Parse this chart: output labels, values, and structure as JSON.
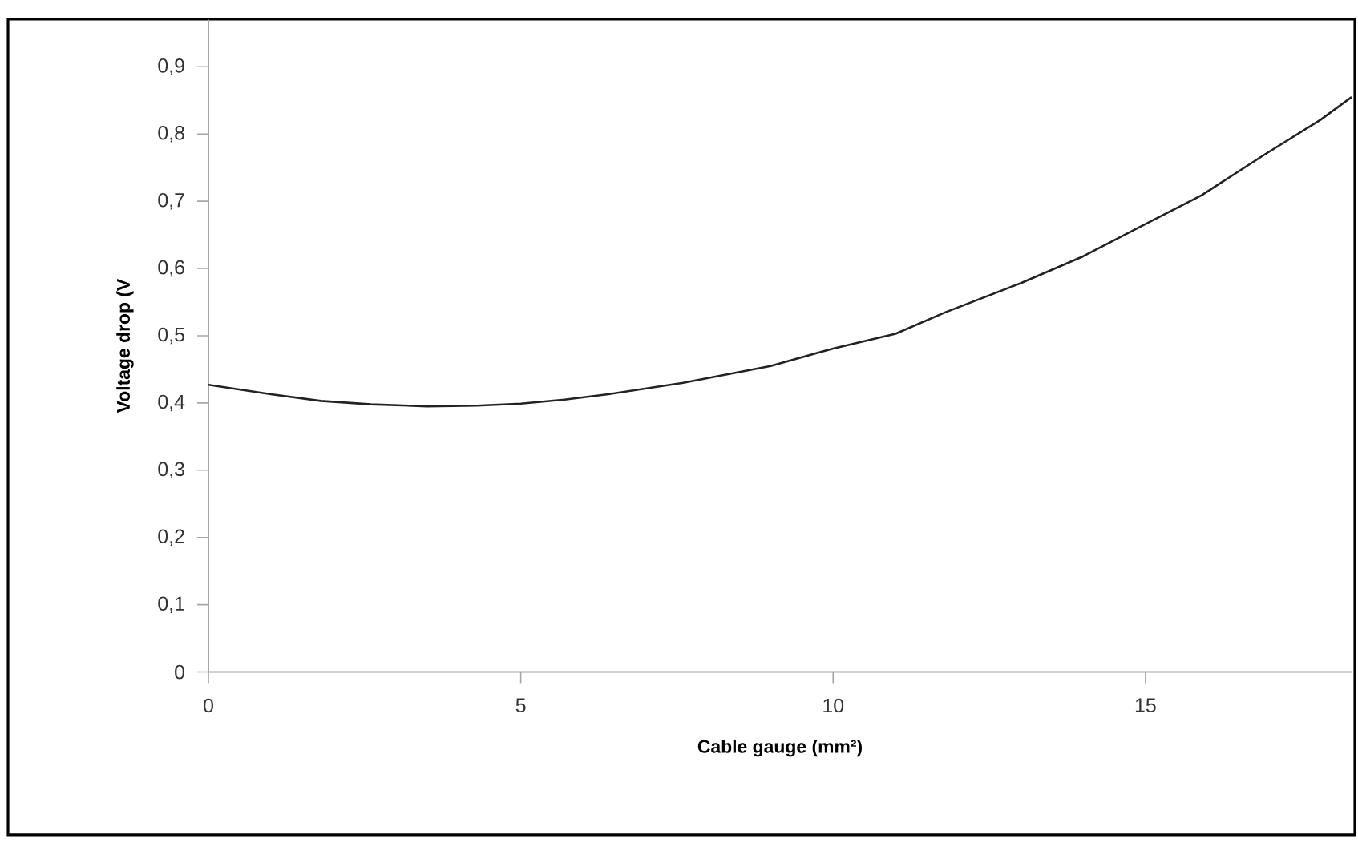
{
  "chart_data": {
    "type": "line",
    "xlabel": "Cable gauge (mm²)",
    "ylabel": "Voltage drop (V",
    "xlim": [
      0,
      18.3
    ],
    "ylim": [
      0,
      0.97
    ],
    "xticks": [
      0,
      5,
      10,
      15
    ],
    "yticks": [
      0,
      {
        "value": 0.1,
        "label": "0,1"
      },
      {
        "value": 0.2,
        "label": "0,2"
      },
      {
        "value": 0.3,
        "label": "0,3"
      },
      {
        "value": 0.4,
        "label": "0,4"
      },
      {
        "value": 0.5,
        "label": "0,5"
      },
      {
        "value": 0.6,
        "label": "0,6"
      },
      {
        "value": 0.7,
        "label": "0,7"
      },
      {
        "value": 0.8,
        "label": "0,8"
      },
      {
        "value": 0.9,
        "label": "0,9"
      }
    ],
    "grid": false,
    "legend": false,
    "marker": "none",
    "line_style": "solid",
    "series": [
      {
        "color": "#222222",
        "x": [
          0,
          1.0,
          1.8,
          2.6,
          3.5,
          4.3,
          5.0,
          5.7,
          6.4,
          7.6,
          9.0,
          10.0,
          11.0,
          11.8,
          13.0,
          14.0,
          15.0,
          15.9,
          16.9,
          17.8,
          18.3
        ],
        "values": [
          0.427,
          0.413,
          0.403,
          0.398,
          0.395,
          0.396,
          0.399,
          0.405,
          0.413,
          0.43,
          0.455,
          0.481,
          0.503,
          0.535,
          0.578,
          0.618,
          0.666,
          0.709,
          0.769,
          0.821,
          0.855
        ]
      }
    ]
  }
}
